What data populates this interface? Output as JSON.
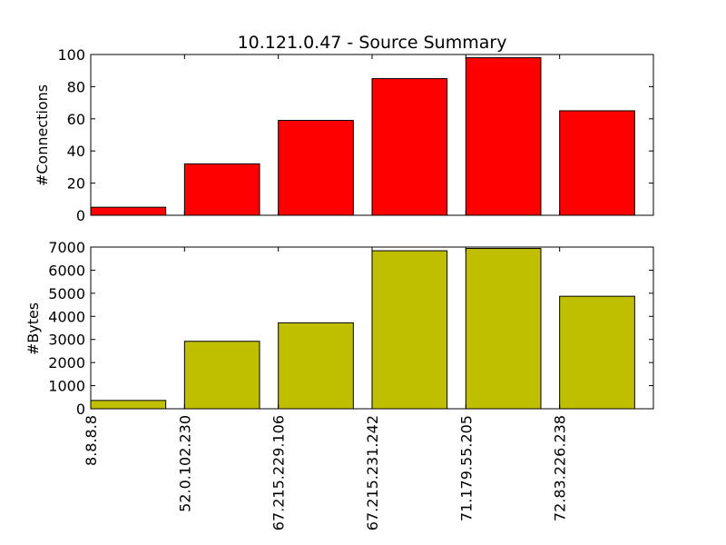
{
  "chart_data": [
    {
      "type": "bar",
      "title": "10.121.0.47 - Source Summary",
      "xlabel": "",
      "ylabel": "#Connections",
      "categories": [
        "8.8.8.8",
        "52.0.102.230",
        "67.215.229.106",
        "67.215.231.242",
        "71.179.55.205",
        "72.83.226.238"
      ],
      "values": [
        5,
        32,
        59,
        85,
        98,
        65
      ],
      "ylim": [
        0,
        100
      ],
      "yticks": [
        "0",
        "20",
        "40",
        "60",
        "80",
        "100"
      ],
      "color": "#ff0000",
      "grid": false
    },
    {
      "type": "bar",
      "title": "",
      "xlabel": "",
      "ylabel": "#Bytes",
      "categories": [
        "8.8.8.8",
        "52.0.102.230",
        "67.215.229.106",
        "67.215.231.242",
        "71.179.55.205",
        "72.83.226.238"
      ],
      "values": [
        360,
        2920,
        3720,
        6840,
        6940,
        4870
      ],
      "ylim": [
        0,
        7000
      ],
      "yticks": [
        "0",
        "1000",
        "2000",
        "3000",
        "4000",
        "5000",
        "6000",
        "7000"
      ],
      "color": "#bfbf00",
      "grid": false
    }
  ]
}
